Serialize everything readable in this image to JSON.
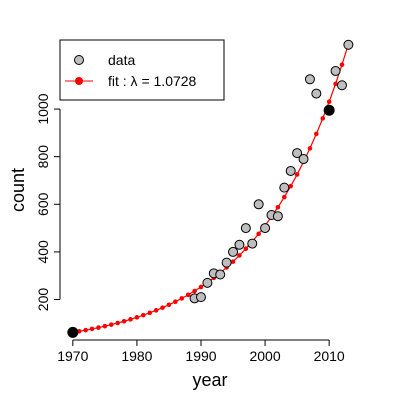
{
  "chart_data": {
    "type": "scatter",
    "xlabel": "year",
    "ylabel": "count",
    "xlim": [
      1968,
      2014.5
    ],
    "ylim": [
      30,
      1290
    ],
    "x_ticks": [
      1970,
      1980,
      1990,
      2000,
      2010
    ],
    "y_ticks": [
      200,
      400,
      600,
      800,
      1000
    ],
    "grid": false,
    "legend_position": "top-left",
    "series": [
      {
        "name": "data",
        "marker": "circle",
        "color": "#bebebe",
        "edge_color": "#000000",
        "x": [
          1970,
          1989,
          1990,
          1991,
          1992,
          1993,
          1994,
          1995,
          1996,
          1997,
          1998,
          1999,
          2000,
          2001,
          2002,
          2003,
          2004,
          2005,
          2006,
          2007,
          2008,
          2010,
          2011,
          2012,
          2013
        ],
        "y": [
          62,
          205,
          210,
          270,
          310,
          305,
          355,
          400,
          430,
          500,
          435,
          600,
          500,
          555,
          550,
          670,
          740,
          815,
          790,
          1125,
          1065,
          995,
          1160,
          1100,
          1270
        ]
      },
      {
        "name": "fit : λ = 1.0728",
        "type": "line",
        "color": "#ff0000",
        "marker": "dot",
        "lambda": 1.0728,
        "x_start": 1970,
        "x_end": 2013,
        "y_start": 62
      }
    ],
    "highlighted_points": [
      {
        "x": 1970,
        "y": 62
      },
      {
        "x": 2010,
        "y": 995
      }
    ]
  }
}
